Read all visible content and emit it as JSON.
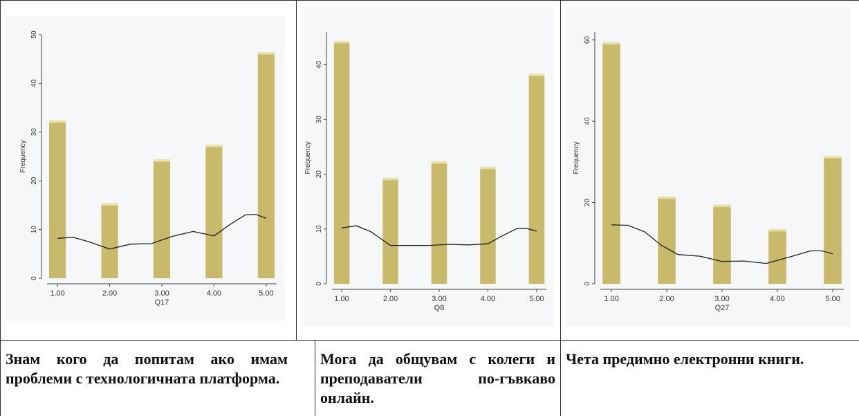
{
  "colors": {
    "bar": "#c8b96b",
    "bar_top": "#e4d98e",
    "curve": "#1e1e1e",
    "panel_bg": "#f5f7f9"
  },
  "chart_data": [
    {
      "type": "bar",
      "x_ticks": [
        "1.00",
        "2.00",
        "3.00",
        "4.00",
        "5.00"
      ],
      "x": [
        1,
        2,
        3,
        4,
        5
      ],
      "values": [
        32,
        15,
        24,
        27,
        46
      ],
      "density_curve": [
        {
          "x": 1.0,
          "y": 8.2
        },
        {
          "x": 1.3,
          "y": 8.4
        },
        {
          "x": 1.6,
          "y": 7.5
        },
        {
          "x": 2.0,
          "y": 6.0
        },
        {
          "x": 2.4,
          "y": 7.0
        },
        {
          "x": 2.8,
          "y": 7.1
        },
        {
          "x": 3.2,
          "y": 8.6
        },
        {
          "x": 3.6,
          "y": 9.6
        },
        {
          "x": 4.0,
          "y": 8.7
        },
        {
          "x": 4.3,
          "y": 11.0
        },
        {
          "x": 4.6,
          "y": 13.0
        },
        {
          "x": 4.8,
          "y": 13.1
        },
        {
          "x": 5.0,
          "y": 12.3
        }
      ],
      "xlabel": "Q17",
      "ylabel": "Frequency",
      "y_ticks": [
        "0",
        "10",
        "20",
        "30",
        "40",
        "50"
      ],
      "ylim": [
        0,
        50
      ],
      "xlim": [
        0.8,
        5.2
      ],
      "grid": false
    },
    {
      "type": "bar",
      "x_ticks": [
        "1.00",
        "2.00",
        "3.00",
        "4.00",
        "5.00"
      ],
      "x": [
        1,
        2,
        3,
        4,
        5
      ],
      "values": [
        44,
        19,
        22,
        21,
        38
      ],
      "density_curve": [
        {
          "x": 1.0,
          "y": 10.2
        },
        {
          "x": 1.3,
          "y": 10.6
        },
        {
          "x": 1.6,
          "y": 9.5
        },
        {
          "x": 2.0,
          "y": 7.0
        },
        {
          "x": 2.4,
          "y": 7.0
        },
        {
          "x": 2.8,
          "y": 7.0
        },
        {
          "x": 3.2,
          "y": 7.2
        },
        {
          "x": 3.6,
          "y": 7.1
        },
        {
          "x": 4.0,
          "y": 7.3
        },
        {
          "x": 4.3,
          "y": 8.8
        },
        {
          "x": 4.6,
          "y": 10.1
        },
        {
          "x": 4.8,
          "y": 10.1
        },
        {
          "x": 5.0,
          "y": 9.6
        }
      ],
      "xlabel": "Q8",
      "ylabel": "Frequency",
      "y_ticks": [
        "0",
        "10",
        "20",
        "30",
        "40"
      ],
      "ylim": [
        0,
        46
      ],
      "xlim": [
        0.8,
        5.2
      ],
      "grid": false
    },
    {
      "type": "bar",
      "x_ticks": [
        "1.00",
        "2.00",
        "3.00",
        "4.00",
        "5.00"
      ],
      "x": [
        1,
        2,
        3,
        4,
        5
      ],
      "values": [
        59,
        21,
        19,
        13,
        31
      ],
      "density_curve": [
        {
          "x": 1.0,
          "y": 14.5
        },
        {
          "x": 1.3,
          "y": 14.4
        },
        {
          "x": 1.6,
          "y": 12.8
        },
        {
          "x": 1.9,
          "y": 9.5
        },
        {
          "x": 2.2,
          "y": 7.2
        },
        {
          "x": 2.6,
          "y": 6.8
        },
        {
          "x": 3.0,
          "y": 5.5
        },
        {
          "x": 3.4,
          "y": 5.6
        },
        {
          "x": 3.8,
          "y": 5.0
        },
        {
          "x": 4.2,
          "y": 6.5
        },
        {
          "x": 4.6,
          "y": 8.1
        },
        {
          "x": 4.8,
          "y": 8.1
        },
        {
          "x": 5.0,
          "y": 7.4
        }
      ],
      "xlabel": "Q27",
      "ylabel": "Frequency",
      "y_ticks": [
        "0",
        "20",
        "40",
        "60"
      ],
      "ylim": [
        0,
        62
      ],
      "xlim": [
        0.8,
        5.2
      ],
      "grid": false
    }
  ],
  "captions": [
    "Знам кого да попитам ако имам проблеми с технологичната платформа.",
    "Мога да общувам с колеги и преподаватели по-гъвкаво онлайн.",
    "Чета предимно електронни книги."
  ]
}
